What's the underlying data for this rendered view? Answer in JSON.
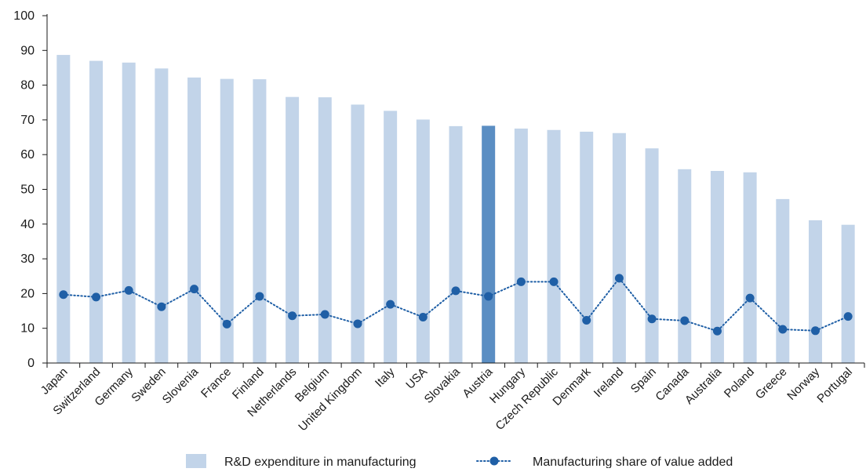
{
  "chart_data": {
    "type": "bar",
    "title": "",
    "xlabel": "",
    "ylabel": "",
    "ylim": [
      0,
      100
    ],
    "yticks": [
      0,
      10,
      20,
      30,
      40,
      50,
      60,
      70,
      80,
      90,
      100
    ],
    "grid": false,
    "legend_position": "bottom",
    "categories": [
      "Japan",
      "Switzerland",
      "Germany",
      "Sweden",
      "Slovenia",
      "France",
      "Finland",
      "Netherlands",
      "Belgium",
      "United Kingdom",
      "Italy",
      "USA",
      "Slovakia",
      "Austria",
      "Hungary",
      "Czech Republic",
      "Denmark",
      "Ireland",
      "Spain",
      "Canada",
      "Australia",
      "Poland",
      "Greece",
      "Norway",
      "Portugal"
    ],
    "highlight_category": "Austria",
    "series": [
      {
        "name": "R&D expenditure in manufacturing",
        "type": "bar",
        "color": "#c2d4e9",
        "highlight_color": "#5b8ec3",
        "values": [
          88.7,
          87.0,
          86.5,
          84.8,
          82.2,
          81.8,
          81.7,
          76.6,
          76.5,
          74.4,
          72.6,
          70.1,
          68.2,
          68.3,
          67.5,
          67.1,
          66.6,
          66.2,
          61.8,
          55.8,
          55.3,
          54.9,
          47.2,
          41.1,
          39.8
        ]
      },
      {
        "name": "Manufacturing share of value added",
        "type": "line",
        "color": "#1f5fa6",
        "line_style": "dotted",
        "values": [
          19.7,
          19.0,
          20.9,
          16.2,
          21.3,
          11.2,
          19.2,
          13.6,
          14.0,
          11.3,
          16.9,
          13.2,
          20.8,
          19.2,
          23.4,
          23.4,
          12.3,
          24.4,
          12.7,
          12.2,
          9.2,
          18.7,
          9.7,
          9.3,
          13.4
        ]
      }
    ]
  }
}
